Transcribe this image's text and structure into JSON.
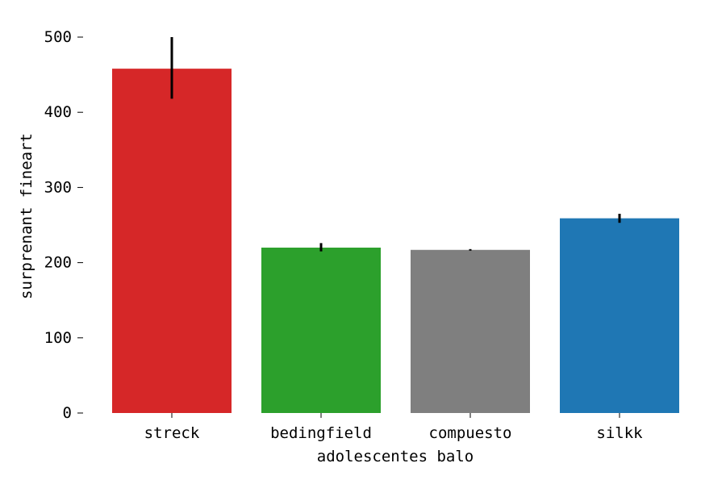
{
  "chart_data": {
    "type": "bar",
    "title": "",
    "xlabel": "adolescentes balo",
    "ylabel": "surprenant fineart",
    "categories": [
      "streck",
      "bedingfield",
      "compuesto",
      "silkk"
    ],
    "values": [
      458,
      220,
      217,
      259
    ],
    "errors": [
      {
        "low": 418,
        "high": 500
      },
      {
        "low": 215,
        "high": 226
      },
      {
        "low": 216,
        "high": 218
      },
      {
        "low": 253,
        "high": 265
      }
    ],
    "colors": [
      "#d62728",
      "#2ca02c",
      "#7f7f7f",
      "#1f77b4"
    ],
    "ylim": [
      0,
      500
    ],
    "yticks": [
      0,
      100,
      200,
      300,
      400,
      500
    ],
    "ytick_labels": [
      "0",
      "100",
      "200",
      "300",
      "400",
      "500"
    ],
    "grid": false,
    "legend": "none"
  }
}
